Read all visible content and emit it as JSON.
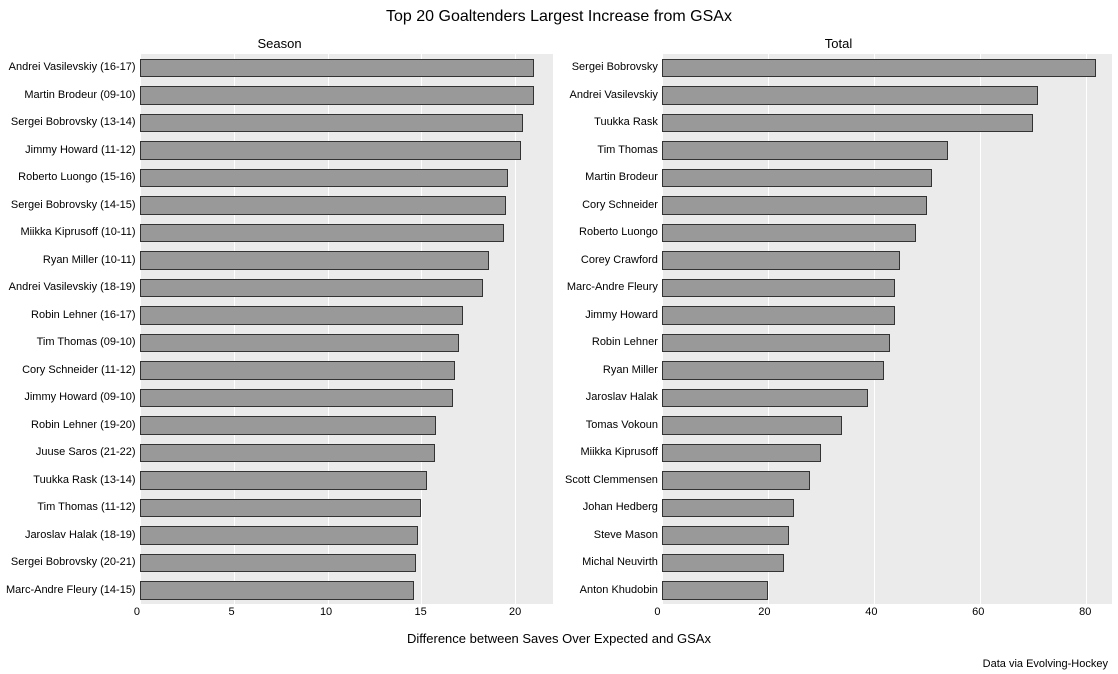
{
  "title": "Top 20 Goaltenders Largest Increase from GSAx",
  "x_axis_title": "Difference between Saves Over Expected and GSAx",
  "caption": "Data via Evolving-Hockey",
  "style": {
    "background_color": "#ffffff",
    "panel_background_color": "#ebebeb",
    "bar_fill_color": "#999999",
    "bar_stroke_color": "#333333",
    "gridline_color": "#ffffff",
    "text_color": "#000000",
    "title_fontsize": 16,
    "panel_title_fontsize": 13,
    "axis_title_fontsize": 13,
    "tick_fontsize": 11,
    "caption_fontsize": 11
  },
  "panels": [
    {
      "title": "Season",
      "x_domain": [
        0,
        22
      ],
      "x_ticks": [
        0,
        5,
        10,
        15,
        20
      ],
      "bars": [
        {
          "label": "Andrei Vasilevskiy (16-17)",
          "value": 21.0
        },
        {
          "label": "Martin Brodeur (09-10)",
          "value": 21.0
        },
        {
          "label": "Sergei Bobrovsky (13-14)",
          "value": 20.4
        },
        {
          "label": "Jimmy Howard (11-12)",
          "value": 20.3
        },
        {
          "label": "Roberto Luongo (15-16)",
          "value": 19.6
        },
        {
          "label": "Sergei Bobrovsky (14-15)",
          "value": 19.5
        },
        {
          "label": "Miikka Kiprusoff (10-11)",
          "value": 19.4
        },
        {
          "label": "Ryan Miller (10-11)",
          "value": 18.6
        },
        {
          "label": "Andrei Vasilevskiy (18-19)",
          "value": 18.3
        },
        {
          "label": "Robin Lehner (16-17)",
          "value": 17.2
        },
        {
          "label": "Tim Thomas (09-10)",
          "value": 17.0
        },
        {
          "label": "Cory Schneider (11-12)",
          "value": 16.8
        },
        {
          "label": "Jimmy Howard (09-10)",
          "value": 16.7
        },
        {
          "label": "Robin Lehner (19-20)",
          "value": 15.8
        },
        {
          "label": "Juuse Saros (21-22)",
          "value": 15.7
        },
        {
          "label": "Tuukka Rask (13-14)",
          "value": 15.3
        },
        {
          "label": "Tim Thomas (11-12)",
          "value": 15.0
        },
        {
          "label": "Jaroslav Halak (18-19)",
          "value": 14.8
        },
        {
          "label": "Sergei Bobrovsky (20-21)",
          "value": 14.7
        },
        {
          "label": "Marc-Andre Fleury (14-15)",
          "value": 14.6
        }
      ]
    },
    {
      "title": "Total",
      "x_domain": [
        0,
        85
      ],
      "x_ticks": [
        0,
        20,
        40,
        60,
        80
      ],
      "bars": [
        {
          "label": "Sergei Bobrovsky",
          "value": 82
        },
        {
          "label": "Andrei Vasilevskiy",
          "value": 71
        },
        {
          "label": "Tuukka Rask",
          "value": 70
        },
        {
          "label": "Tim Thomas",
          "value": 54
        },
        {
          "label": "Martin Brodeur",
          "value": 51
        },
        {
          "label": "Cory Schneider",
          "value": 50
        },
        {
          "label": "Roberto Luongo",
          "value": 48
        },
        {
          "label": "Corey Crawford",
          "value": 45
        },
        {
          "label": "Marc-Andre Fleury",
          "value": 44
        },
        {
          "label": "Jimmy Howard",
          "value": 44
        },
        {
          "label": "Robin Lehner",
          "value": 43
        },
        {
          "label": "Ryan Miller",
          "value": 42
        },
        {
          "label": "Jaroslav Halak",
          "value": 39
        },
        {
          "label": "Tomas Vokoun",
          "value": 34
        },
        {
          "label": "Miikka Kiprusoff",
          "value": 30
        },
        {
          "label": "Scott Clemmensen",
          "value": 28
        },
        {
          "label": "Johan Hedberg",
          "value": 25
        },
        {
          "label": "Steve Mason",
          "value": 24
        },
        {
          "label": "Michal Neuvirth",
          "value": 23
        },
        {
          "label": "Anton Khudobin",
          "value": 20
        }
      ]
    }
  ]
}
